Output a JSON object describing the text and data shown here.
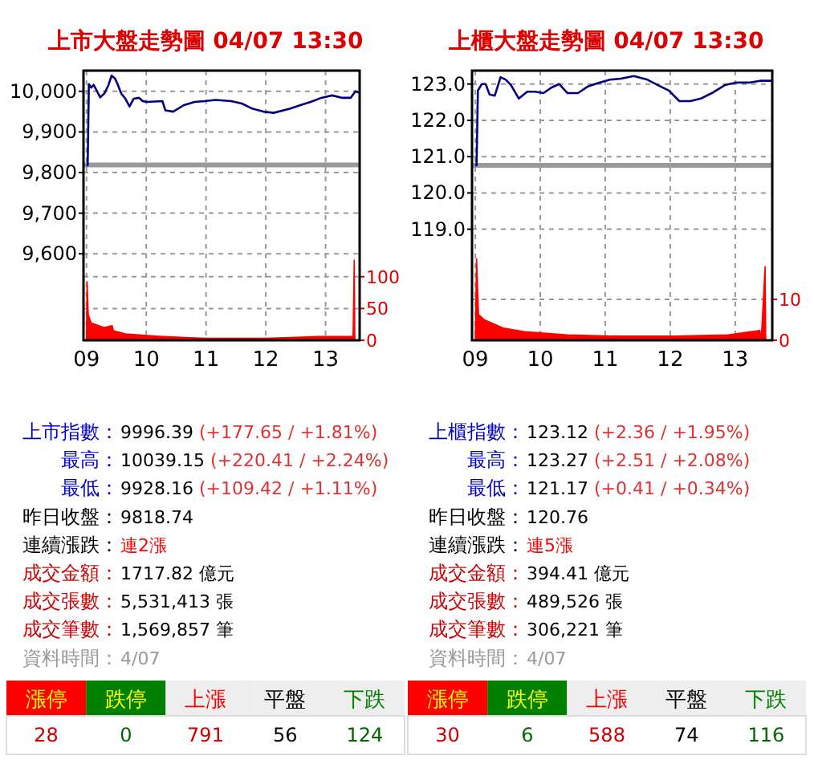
{
  "chart_data": [
    {
      "type": "line",
      "title": "上市大盤走勢圖   04/07 13:30",
      "xlim": [
        8.95,
        13.57
      ],
      "xticks": [
        {
          "value": 9,
          "label": "09"
        },
        10,
        11,
        12,
        13
      ],
      "ylim": [
        9387,
        10051
      ],
      "yticks": [
        {
          "value": 9600,
          "label": "9,600"
        },
        {
          "value": 9700,
          "label": "9,700"
        },
        {
          "value": 9800,
          "label": "9,800"
        },
        {
          "value": 9900,
          "label": "9,900"
        },
        {
          "value": 10000,
          "label": "10,000"
        }
      ],
      "y2lim": [
        0,
        424
      ],
      "y2ticks": [
        0,
        50,
        100
      ],
      "grid": true,
      "ref_lines": [
        {
          "axis": "y",
          "value": 9818.74,
          "color": "#999999"
        }
      ],
      "series": [
        {
          "type": "line",
          "color": "#000080",
          "x": [
            9.0,
            9.02,
            9.04,
            9.08,
            9.12,
            9.23,
            9.3,
            9.37,
            9.42,
            9.48,
            9.52,
            9.58,
            9.65,
            9.72,
            9.79,
            9.88,
            9.94,
            10.01,
            10.27,
            10.32,
            10.45,
            10.63,
            10.81,
            10.98,
            11.16,
            11.42,
            11.6,
            11.78,
            11.96,
            12.13,
            12.4,
            12.58,
            12.75,
            12.93,
            13.11,
            13.28,
            13.42,
            13.5,
            13.57
          ],
          "values": [
            9818,
            9818,
            10018,
            10009,
            10016,
            9985,
            9995,
            10016,
            10039,
            10031,
            10018,
            9995,
            9982,
            9963,
            9982,
            9984,
            9976,
            9974,
            9976,
            9953,
            9950,
            9966,
            9974,
            9976,
            9979,
            9976,
            9970,
            9957,
            9950,
            9947,
            9957,
            9966,
            9974,
            9984,
            9990,
            9984,
            9984,
            10000,
            9996
          ]
        },
        {
          "type": "area",
          "axis": "y2",
          "color": "#ff0000",
          "x": [
            9.0,
            9.01,
            9.03,
            9.08,
            9.3,
            9.43,
            9.45,
            9.65,
            9.92,
            10.27,
            11.0,
            12.0,
            12.9,
            13.46,
            13.48,
            13.49
          ],
          "values": [
            0,
            92,
            40,
            27,
            20,
            23,
            15,
            10,
            8,
            6,
            3,
            3,
            6,
            6,
            126,
            0
          ]
        }
      ]
    },
    {
      "type": "line",
      "title": "上櫃大盤走勢圖   04/07 13:30",
      "xlim": [
        8.95,
        13.57
      ],
      "xticks": [
        {
          "value": 9,
          "label": "09"
        },
        10,
        11,
        12,
        13
      ],
      "ylim": [
        115.94,
        123.37
      ],
      "yticks": [
        {
          "value": 119,
          "label": "119.0"
        },
        {
          "value": 120,
          "label": "120.0"
        },
        {
          "value": 121,
          "label": "121.0"
        },
        {
          "value": 122,
          "label": "122.0"
        },
        {
          "value": 123,
          "label": "123.0"
        }
      ],
      "y2lim": [
        0,
        66
      ],
      "y2ticks": [
        0,
        10
      ],
      "grid": true,
      "ref_lines": [
        {
          "axis": "y",
          "value": 120.76,
          "color": "#999999"
        }
      ],
      "series": [
        {
          "type": "line",
          "color": "#000080",
          "x": [
            9.0,
            9.02,
            9.04,
            9.1,
            9.16,
            9.22,
            9.3,
            9.39,
            9.47,
            9.55,
            9.67,
            9.8,
            9.92,
            10.05,
            10.17,
            10.29,
            10.42,
            10.58,
            10.74,
            10.91,
            11.07,
            11.24,
            11.44,
            11.65,
            11.81,
            11.98,
            12.14,
            12.31,
            12.47,
            12.64,
            12.84,
            13.01,
            13.21,
            13.38,
            13.57
          ],
          "values": [
            120.76,
            120.76,
            122.82,
            123.0,
            123.0,
            122.71,
            122.68,
            123.19,
            123.12,
            122.97,
            122.6,
            122.79,
            122.79,
            122.75,
            122.9,
            123.0,
            122.75,
            122.75,
            122.94,
            123.04,
            123.12,
            123.15,
            123.22,
            123.12,
            122.97,
            122.82,
            122.53,
            122.53,
            122.6,
            122.75,
            122.97,
            123.04,
            123.04,
            123.09,
            123.09
          ]
        },
        {
          "type": "area",
          "axis": "y2",
          "color": "#ff0000",
          "x": [
            9.0,
            9.02,
            9.05,
            9.14,
            9.43,
            9.76,
            10.42,
            11.24,
            12.07,
            12.89,
            13.38,
            13.4,
            13.46,
            13.47
          ],
          "values": [
            0,
            20,
            6.3,
            5,
            3,
            2.1,
            1.3,
            1,
            1,
            1.3,
            2.4,
            0,
            18,
            0
          ]
        }
      ]
    },
    {
      "type": "other",
      "annotations": [
        "上市指數：9996.39 (+177.65 / +1.81%)",
        "最高：10039.15 (+220.41 / +2.24%)",
        "最低：9928.16 (+109.42 / +1.11%)",
        "昨日收盤：9818.74",
        "連續漲跌：連2漲",
        "成交金額：1717.82 億元",
        "成交張數：5,531,413 張",
        "成交筆數：1,569,857 筆",
        "資料時間：4/07"
      ],
      "categories": [
        "漲停",
        "跌停",
        "上漲",
        "平盤",
        "下跌"
      ],
      "values": [
        28,
        0,
        791,
        56,
        124
      ],
      "data_labels": true
    },
    {
      "type": "other",
      "annotations": [
        "上櫃指數：123.12 (+2.36 / +1.95%)",
        "最高：123.27 (+2.51 / +2.08%)",
        "最低：121.17 (+0.41 / +0.34%)",
        "昨日收盤：120.76",
        "連續漲跌：連5漲",
        "成交金額：394.41 億元",
        "成交張數：489,526 張",
        "成交筆數：306,221 筆",
        "資料時間：4/07"
      ],
      "categories": [
        "漲停",
        "跌停",
        "上漲",
        "平盤",
        "下跌"
      ],
      "values": [
        30,
        6,
        588,
        74,
        116
      ],
      "data_labels": true
    }
  ]
}
